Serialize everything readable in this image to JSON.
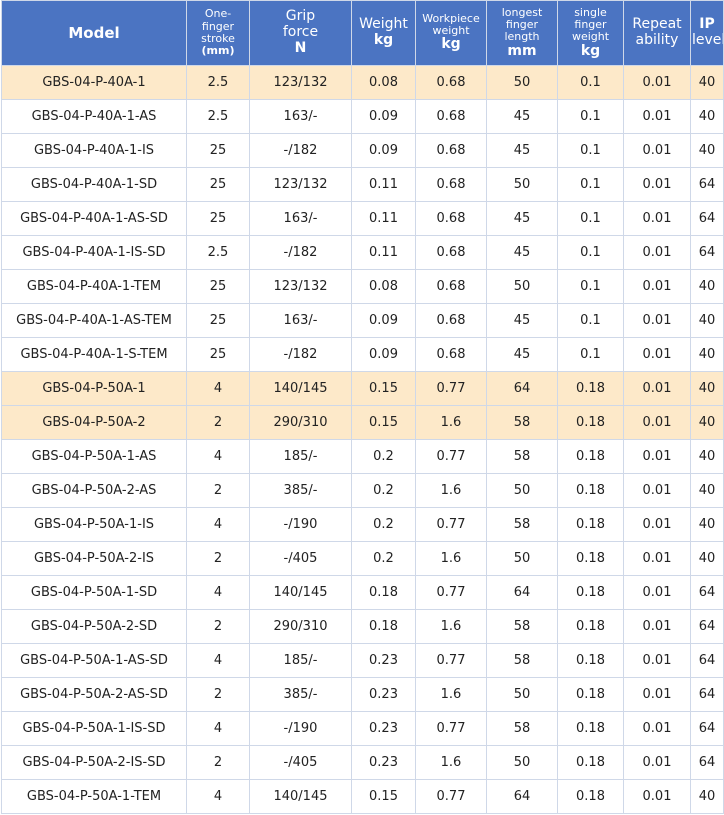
{
  "headers": [
    {
      "lines": [
        "Model"
      ],
      "unit": ""
    },
    {
      "lines": [
        "One-",
        "finger",
        "stroke"
      ],
      "unit": "(mm)"
    },
    {
      "lines": [
        "Grip",
        "force"
      ],
      "unit": "N"
    },
    {
      "lines": [
        "Weight"
      ],
      "unit": "kg"
    },
    {
      "lines": [
        "Workpiece",
        "weight"
      ],
      "unit": "kg"
    },
    {
      "lines": [
        "longest",
        "finger",
        "length"
      ],
      "unit": "mm"
    },
    {
      "lines": [
        "single",
        "finger",
        "weight"
      ],
      "unit": "kg"
    },
    {
      "lines": [
        "Repeat",
        "ability"
      ],
      "unit": ""
    },
    {
      "lines": [
        "IP",
        "level"
      ],
      "unit": ""
    }
  ],
  "rows": [
    {
      "highlight": true,
      "cells": [
        "GBS-04-P-40A-1",
        "2.5",
        "123/132",
        "0.08",
        "0.68",
        "50",
        "0.1",
        "0.01",
        "40"
      ]
    },
    {
      "highlight": false,
      "cells": [
        "GBS-04-P-40A-1-AS",
        "2.5",
        "163/-",
        "0.09",
        "0.68",
        "45",
        "0.1",
        "0.01",
        "40"
      ]
    },
    {
      "highlight": false,
      "cells": [
        "GBS-04-P-40A-1-IS",
        "25",
        "-/182",
        "0.09",
        "0.68",
        "45",
        "0.1",
        "0.01",
        "40"
      ]
    },
    {
      "highlight": false,
      "cells": [
        "GBS-04-P-40A-1-SD",
        "25",
        "123/132",
        "0.11",
        "0.68",
        "50",
        "0.1",
        "0.01",
        "64"
      ]
    },
    {
      "highlight": false,
      "cells": [
        "GBS-04-P-40A-1-AS-SD",
        "25",
        "163/-",
        "0.11",
        "0.68",
        "45",
        "0.1",
        "0.01",
        "64"
      ]
    },
    {
      "highlight": false,
      "cells": [
        "GBS-04-P-40A-1-IS-SD",
        "2.5",
        "-/182",
        "0.11",
        "0.68",
        "45",
        "0.1",
        "0.01",
        "64"
      ]
    },
    {
      "highlight": false,
      "cells": [
        "GBS-04-P-40A-1-TEM",
        "25",
        "123/132",
        "0.08",
        "0.68",
        "50",
        "0.1",
        "0.01",
        "40"
      ]
    },
    {
      "highlight": false,
      "cells": [
        "GBS-04-P-40A-1-AS-TEM",
        "25",
        "163/-",
        "0.09",
        "0.68",
        "45",
        "0.1",
        "0.01",
        "40"
      ]
    },
    {
      "highlight": false,
      "cells": [
        "GBS-04-P-40A-1-S-TEM",
        "25",
        "-/182",
        "0.09",
        "0.68",
        "45",
        "0.1",
        "0.01",
        "40"
      ]
    },
    {
      "highlight": true,
      "cells": [
        "GBS-04-P-50A-1",
        "4",
        "140/145",
        "0.15",
        "0.77",
        "64",
        "0.18",
        "0.01",
        "40"
      ]
    },
    {
      "highlight": true,
      "cells": [
        "GBS-04-P-50A-2",
        "2",
        "290/310",
        "0.15",
        "1.6",
        "58",
        "0.18",
        "0.01",
        "40"
      ]
    },
    {
      "highlight": false,
      "cells": [
        "GBS-04-P-50A-1-AS",
        "4",
        "185/-",
        "0.2",
        "0.77",
        "58",
        "0.18",
        "0.01",
        "40"
      ]
    },
    {
      "highlight": false,
      "cells": [
        "GBS-04-P-50A-2-AS",
        "2",
        "385/-",
        "0.2",
        "1.6",
        "50",
        "0.18",
        "0.01",
        "40"
      ]
    },
    {
      "highlight": false,
      "cells": [
        "GBS-04-P-50A-1-IS",
        "4",
        "-/190",
        "0.2",
        "0.77",
        "58",
        "0.18",
        "0.01",
        "40"
      ]
    },
    {
      "highlight": false,
      "cells": [
        "GBS-04-P-50A-2-IS",
        "2",
        "-/405",
        "0.2",
        "1.6",
        "50",
        "0.18",
        "0.01",
        "40"
      ]
    },
    {
      "highlight": false,
      "cells": [
        "GBS-04-P-50A-1-SD",
        "4",
        "140/145",
        "0.18",
        "0.77",
        "64",
        "0.18",
        "0.01",
        "64"
      ]
    },
    {
      "highlight": false,
      "cells": [
        "GBS-04-P-50A-2-SD",
        "2",
        "290/310",
        "0.18",
        "1.6",
        "58",
        "0.18",
        "0.01",
        "64"
      ]
    },
    {
      "highlight": false,
      "cells": [
        "GBS-04-P-50A-1-AS-SD",
        "4",
        "185/-",
        "0.23",
        "0.77",
        "58",
        "0.18",
        "0.01",
        "64"
      ]
    },
    {
      "highlight": false,
      "cells": [
        "GBS-04-P-50A-2-AS-SD",
        "2",
        "385/-",
        "0.23",
        "1.6",
        "50",
        "0.18",
        "0.01",
        "64"
      ]
    },
    {
      "highlight": false,
      "cells": [
        "GBS-04-P-50A-1-IS-SD",
        "4",
        "-/190",
        "0.23",
        "0.77",
        "58",
        "0.18",
        "0.01",
        "64"
      ]
    },
    {
      "highlight": false,
      "cells": [
        "GBS-04-P-50A-2-IS-SD",
        "2",
        "-/405",
        "0.23",
        "1.6",
        "50",
        "0.18",
        "0.01",
        "64"
      ]
    },
    {
      "highlight": false,
      "cells": [
        "GBS-04-P-50A-1-TEM",
        "4",
        "140/145",
        "0.15",
        "0.77",
        "64",
        "0.18",
        "0.01",
        "40"
      ]
    }
  ],
  "colors": {
    "header_bg": "#4b74c2",
    "header_text": "#ffffff",
    "highlight_bg": "#fde9c9",
    "border": "#cfd8e8"
  }
}
